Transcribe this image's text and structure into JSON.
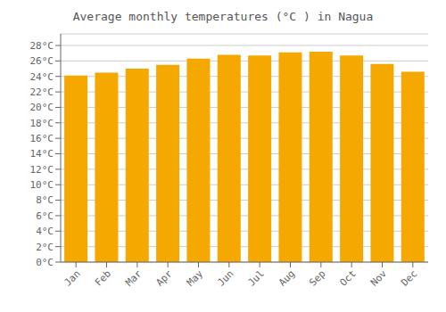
{
  "chart_data": {
    "type": "bar",
    "title": "Average monthly temperatures (°C ) in Nagua",
    "categories": [
      "Jan",
      "Feb",
      "Mar",
      "Apr",
      "May",
      "Jun",
      "Jul",
      "Aug",
      "Sep",
      "Oct",
      "Nov",
      "Dec"
    ],
    "values": [
      24.1,
      24.5,
      25.0,
      25.5,
      26.3,
      26.8,
      26.7,
      27.1,
      27.2,
      26.7,
      25.6,
      24.6
    ],
    "color": "#F5A800",
    "ylim": [
      0,
      29.5
    ],
    "yticks": [
      {
        "value": 0,
        "label": "0°C"
      },
      {
        "value": 2,
        "label": "2°C"
      },
      {
        "value": 4,
        "label": "4°C"
      },
      {
        "value": 6,
        "label": "6°C"
      },
      {
        "value": 8,
        "label": "8°C"
      },
      {
        "value": 10,
        "label": "10°C"
      },
      {
        "value": 12,
        "label": "12°C"
      },
      {
        "value": 14,
        "label": "14°C"
      },
      {
        "value": 16,
        "label": "16°C"
      },
      {
        "value": 18,
        "label": "18°C"
      },
      {
        "value": 20,
        "label": "20°C"
      },
      {
        "value": 22,
        "label": "22°C"
      },
      {
        "value": 24,
        "label": "24°C"
      },
      {
        "value": 26,
        "label": "26°C"
      },
      {
        "value": 28,
        "label": "28°C"
      }
    ],
    "grid": true
  }
}
